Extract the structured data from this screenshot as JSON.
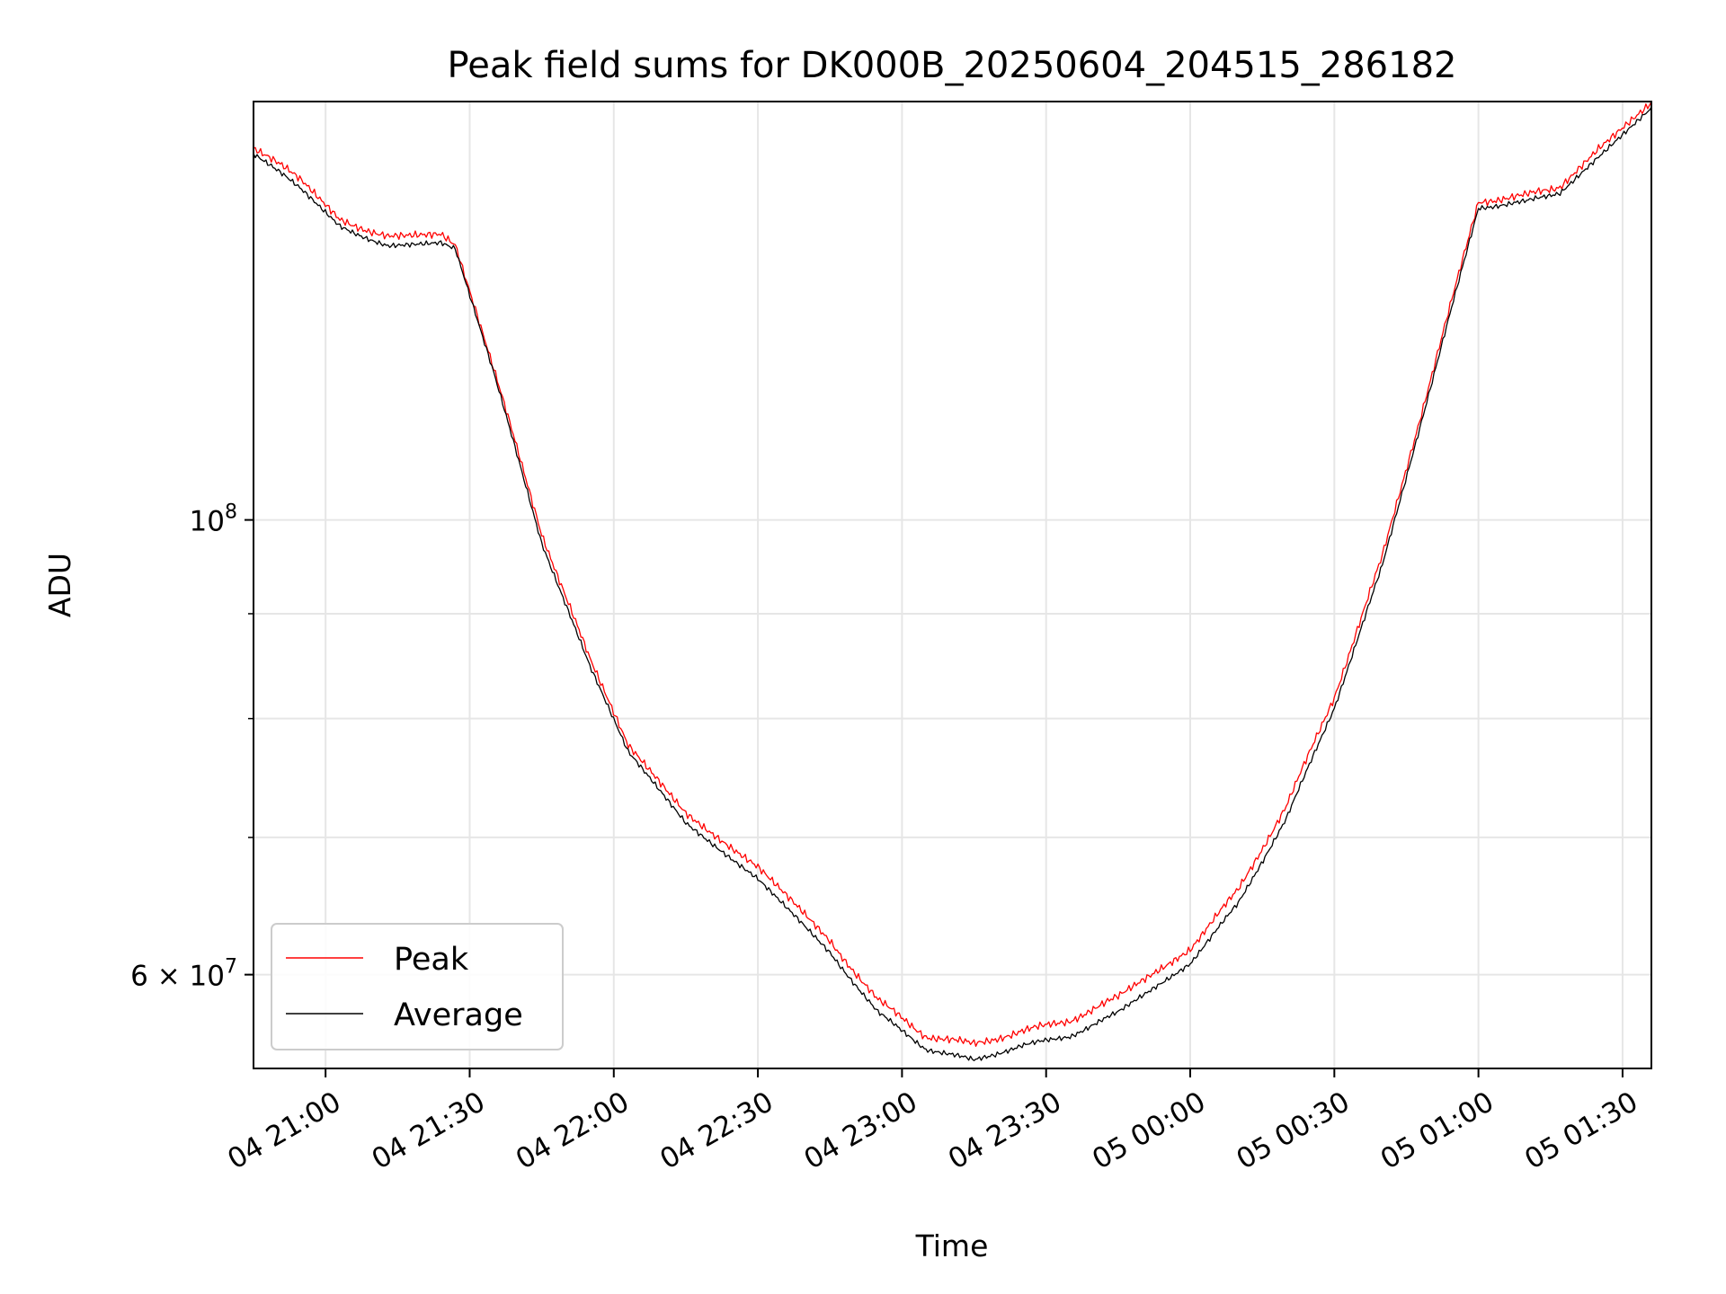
{
  "chart_data": {
    "type": "line",
    "title": "Peak field sums for DK000B_20250604_204515_286182",
    "xlabel": "Time",
    "ylabel": "ADU",
    "x_range": [
      "2025-06-04 20:45",
      "2025-06-05 01:36"
    ],
    "y_range": [
      54000000,
      160000000
    ],
    "y_scale": "log",
    "grid": true,
    "legend_position": "lower-left",
    "x_ticks": [
      "04 21:00",
      "04 21:30",
      "04 22:00",
      "04 22:30",
      "04 23:00",
      "04 23:30",
      "05 00:00",
      "05 00:30",
      "05 01:00",
      "05 01:30"
    ],
    "y_ticks": [
      {
        "value": 100000000,
        "base": "10",
        "exponent": "8",
        "mantissa": ""
      },
      {
        "value": 60000000,
        "base": "10",
        "exponent": "7",
        "mantissa": "6 × "
      }
    ],
    "series": [
      {
        "name": "Peak",
        "color": "#ff0000",
        "points": [
          [
            "2025-06-04 20:45",
            152000000
          ],
          [
            "2025-06-04 20:55",
            146500000
          ],
          [
            "2025-06-04 21:03",
            140000000
          ],
          [
            "2025-06-04 21:13",
            137500000
          ],
          [
            "2025-06-04 21:24",
            137800000
          ],
          [
            "2025-06-04 21:27",
            136000000
          ],
          [
            "2025-06-04 21:35",
            118500000
          ],
          [
            "2025-06-04 21:45",
            98500000
          ],
          [
            "2025-06-04 21:55",
            85500000
          ],
          [
            "2025-06-04 22:03",
            77500000
          ],
          [
            "2025-06-04 22:15",
            72000000
          ],
          [
            "2025-06-04 22:30",
            67700000
          ],
          [
            "2025-06-04 22:45",
            62300000
          ],
          [
            "2025-06-04 22:55",
            58300000
          ],
          [
            "2025-06-04 23:05",
            56000000
          ],
          [
            "2025-06-04 23:15",
            55500000
          ],
          [
            "2025-06-04 23:25",
            56300000
          ],
          [
            "2025-06-04 23:35",
            57000000
          ],
          [
            "2025-06-04 23:45",
            58500000
          ],
          [
            "2025-06-05 00:00",
            61800000
          ],
          [
            "2025-06-05 00:10",
            66000000
          ],
          [
            "2025-06-05 00:20",
            72500000
          ],
          [
            "2025-06-05 00:30",
            82000000
          ],
          [
            "2025-06-05 00:40",
            96000000
          ],
          [
            "2025-06-05 00:50",
            117000000
          ],
          [
            "2025-06-05 01:00",
            143000000
          ],
          [
            "2025-06-05 01:10",
            144000000
          ],
          [
            "2025-06-05 01:17",
            145500000
          ],
          [
            "2025-06-05 01:25",
            152000000
          ],
          [
            "2025-06-05 01:36",
            160000000
          ]
        ]
      },
      {
        "name": "Average",
        "color": "#000000",
        "points": [
          [
            "2025-06-04 20:45",
            151000000
          ],
          [
            "2025-06-04 20:55",
            145000000
          ],
          [
            "2025-06-04 21:03",
            139000000
          ],
          [
            "2025-06-04 21:13",
            136000000
          ],
          [
            "2025-06-04 21:24",
            136500000
          ],
          [
            "2025-06-04 21:27",
            135500000
          ],
          [
            "2025-06-04 21:35",
            118000000
          ],
          [
            "2025-06-04 21:45",
            97500000
          ],
          [
            "2025-06-04 21:55",
            84800000
          ],
          [
            "2025-06-04 22:03",
            77000000
          ],
          [
            "2025-06-04 22:15",
            71200000
          ],
          [
            "2025-06-04 22:30",
            66800000
          ],
          [
            "2025-06-04 22:45",
            61500000
          ],
          [
            "2025-06-04 22:55",
            57500000
          ],
          [
            "2025-06-04 23:05",
            55200000
          ],
          [
            "2025-06-04 23:15",
            54500000
          ],
          [
            "2025-06-04 23:25",
            55400000
          ],
          [
            "2025-06-04 23:35",
            56000000
          ],
          [
            "2025-06-04 23:45",
            57500000
          ],
          [
            "2025-06-05 00:00",
            60800000
          ],
          [
            "2025-06-05 00:10",
            65000000
          ],
          [
            "2025-06-05 00:20",
            71500000
          ],
          [
            "2025-06-05 00:30",
            81000000
          ],
          [
            "2025-06-05 00:40",
            95000000
          ],
          [
            "2025-06-05 00:50",
            116000000
          ],
          [
            "2025-06-05 01:00",
            142000000
          ],
          [
            "2025-06-05 01:10",
            143000000
          ],
          [
            "2025-06-05 01:17",
            144500000
          ],
          [
            "2025-06-05 01:25",
            150500000
          ],
          [
            "2025-06-05 01:36",
            159000000
          ]
        ]
      }
    ]
  }
}
